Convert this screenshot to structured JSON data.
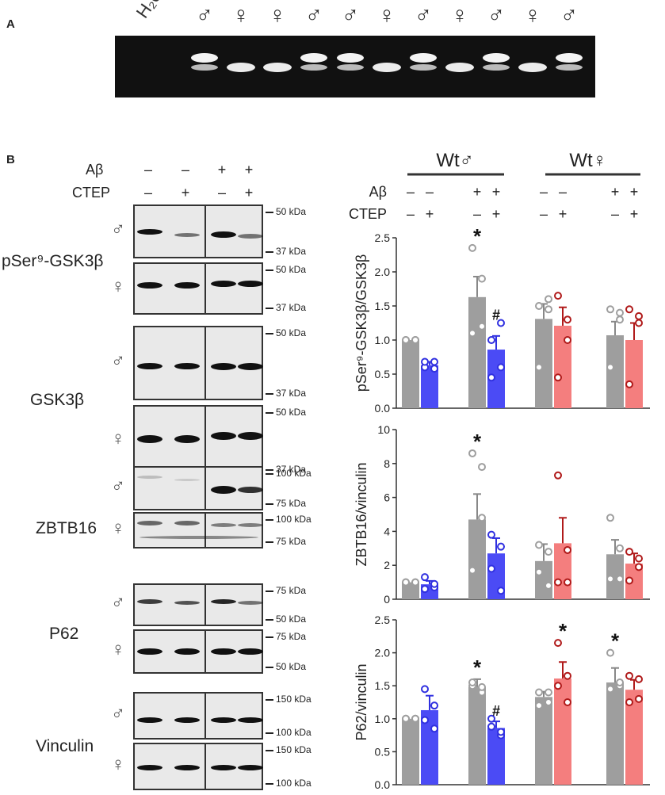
{
  "panels": {
    "a": "A",
    "b": "B"
  },
  "gel": {
    "h2o_label": "H₂0",
    "lane_labels": [
      "♂",
      "♀",
      "♀",
      "♂",
      "♂",
      "♀",
      "♂",
      "♀",
      "♂",
      "♀",
      "♂"
    ]
  },
  "blot": {
    "abeta_label": "Aβ",
    "ctep_label": "CTEP",
    "abeta_signs": [
      "–",
      "–",
      "+",
      "+"
    ],
    "ctep_signs": [
      "–",
      "+",
      "–",
      "+"
    ],
    "male_symbol": "♂",
    "female_symbol": "♀",
    "names": {
      "pser": "pSer⁹-GSK3β",
      "gsk": "GSK3β",
      "zbtb": "ZBTB16",
      "p62": "P62",
      "vinculin": "Vinculin"
    },
    "markers": {
      "pser_m": [
        "50 kDa",
        "37 kDa"
      ],
      "pser_f": [
        "50 kDa",
        "37 kDa"
      ],
      "gsk_m": [
        "50 kDa",
        "37 kDa"
      ],
      "gsk_f": [
        "50 kDa",
        "37 kDa"
      ],
      "zbtb_m": [
        "100 kDa",
        "75 kDa"
      ],
      "zbtb_f": [
        "100 kDa",
        "75 kDa"
      ],
      "p62_m": [
        "75 kDa",
        "50 kDa"
      ],
      "p62_f": [
        "75 kDa",
        "50 kDa"
      ],
      "vin_m": [
        "150 kDa",
        "100 kDa"
      ],
      "vin_f": [
        "150 kDa",
        "100 kDa"
      ]
    }
  },
  "groups": {
    "male": "Wt♂",
    "female": "Wt♀",
    "abeta_label": "Aβ",
    "ctep_label": "CTEP",
    "abeta_signs": [
      "–",
      "–",
      "+",
      "+",
      "–",
      "–",
      "+",
      "+"
    ],
    "ctep_signs": [
      "–",
      "+",
      "–",
      "+",
      "–",
      "+",
      "–",
      "+"
    ]
  },
  "colors": {
    "control": "#9e9e9e",
    "male_ctep": "#4b4bf5",
    "female_ctep": "#f47e7e",
    "male_dot": "#3030e0",
    "female_dot": "#b01a1a"
  },
  "chart_data": [
    {
      "type": "bar",
      "ylabel": "pSer⁹-GSK3β/GSK3β",
      "ylim": [
        0,
        2.5
      ],
      "yticks": [
        "0.0",
        "0.5",
        "1.0",
        "1.5",
        "2.0",
        "2.5"
      ],
      "values": [
        1.0,
        0.63,
        1.63,
        0.86,
        1.31,
        1.21,
        1.07,
        1.0
      ],
      "errors": [
        0.0,
        0.05,
        0.3,
        0.2,
        0.22,
        0.27,
        0.2,
        0.25
      ],
      "points": [
        [
          1.0,
          1.0,
          1.0,
          1.0
        ],
        [
          0.6,
          0.58,
          0.68,
          0.68
        ],
        [
          1.1,
          1.9,
          2.35,
          1.2
        ],
        [
          1.0,
          0.6,
          0.45,
          1.25
        ],
        [
          1.5,
          1.45,
          0.6,
          1.6
        ],
        [
          1.65,
          1.3,
          0.45,
          1.0
        ],
        [
          1.45,
          1.3,
          0.6,
          1.4
        ],
        [
          1.45,
          1.35,
          0.35,
          1.25
        ]
      ],
      "annotations": [
        "",
        "",
        "*",
        "#",
        "",
        "",
        "",
        ""
      ]
    },
    {
      "type": "bar",
      "ylabel": "ZBTB16/vinculin",
      "ylim": [
        0,
        10
      ],
      "yticks": [
        "0",
        "2",
        "4",
        "6",
        "8",
        "10"
      ],
      "values": [
        1.0,
        0.88,
        4.7,
        2.7,
        2.25,
        3.3,
        2.65,
        2.1
      ],
      "errors": [
        0.0,
        0.2,
        1.5,
        0.9,
        1.0,
        1.5,
        0.85,
        0.6
      ],
      "points": [
        [
          1.0,
          1.0,
          1.0,
          1.0
        ],
        [
          1.3,
          0.7,
          0.6,
          0.9
        ],
        [
          8.6,
          7.8,
          1.7,
          4.8
        ],
        [
          3.8,
          0.5,
          1.8,
          3.1
        ],
        [
          3.2,
          0.8,
          1.6,
          2.8
        ],
        [
          7.3,
          2.9,
          1.0,
          1.0
        ],
        [
          4.8,
          3.0,
          1.2,
          1.2
        ],
        [
          2.8,
          1.9,
          1.1,
          2.4
        ]
      ],
      "annotations": [
        "",
        "",
        "*",
        "",
        "",
        "",
        "",
        ""
      ]
    },
    {
      "type": "bar",
      "ylabel": "P62/vinculin",
      "ylim": [
        0,
        2.5
      ],
      "yticks": [
        "0.0",
        "0.5",
        "1.0",
        "1.5",
        "2.0",
        "2.5"
      ],
      "values": [
        1.0,
        1.13,
        1.48,
        0.86,
        1.33,
        1.61,
        1.55,
        1.44
      ],
      "errors": [
        0.0,
        0.22,
        0.12,
        0.1,
        0.08,
        0.25,
        0.22,
        0.15
      ],
      "points": [
        [
          1.0,
          1.0,
          1.0,
          1.0
        ],
        [
          1.45,
          0.85,
          0.98,
          1.2
        ],
        [
          1.5,
          1.4,
          1.55,
          1.48
        ],
        [
          1.0,
          0.75,
          0.88,
          0.8
        ],
        [
          1.4,
          1.25,
          1.2,
          1.4
        ],
        [
          2.15,
          1.25,
          1.5,
          1.65
        ],
        [
          2.0,
          1.5,
          1.45,
          1.55
        ],
        [
          1.65,
          1.3,
          1.25,
          1.6
        ]
      ],
      "annotations": [
        "",
        "",
        "*",
        "#",
        "",
        "*",
        "*",
        ""
      ]
    }
  ]
}
